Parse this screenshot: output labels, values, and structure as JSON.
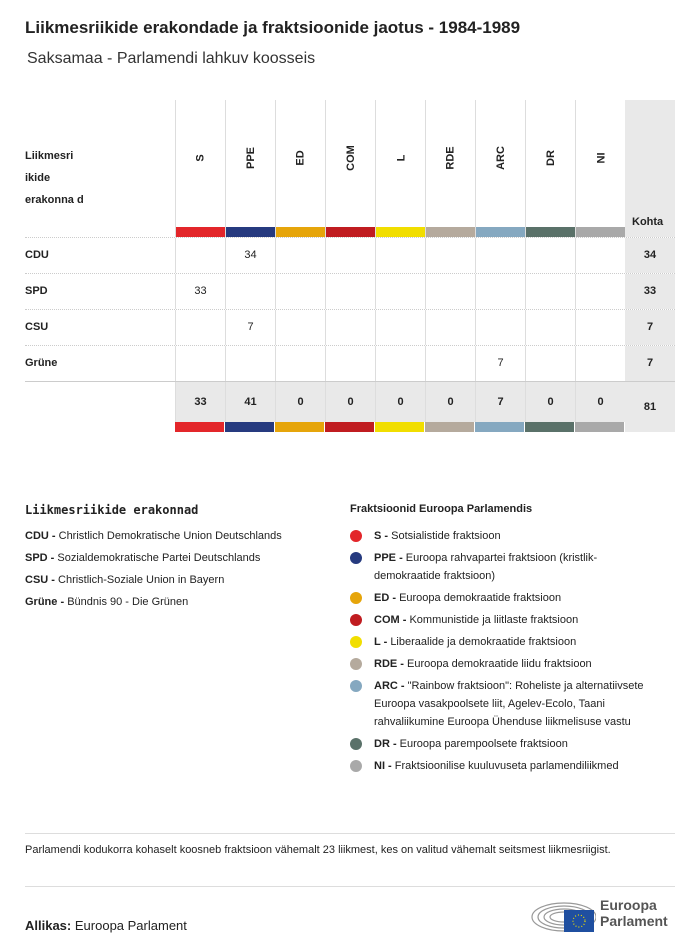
{
  "title": "Liikmesriikide erakondade ja fraktsioonide jaotus - 1984-1989",
  "subtitle": "Saksamaa - Parlamendi lahkuv koosseis",
  "table": {
    "row_header": "Liikmesri ikide erakonna d",
    "total_header": "Kohta",
    "groups": [
      {
        "code": "S",
        "color": "#e3262a"
      },
      {
        "code": "PPE",
        "color": "#263a7f"
      },
      {
        "code": "ED",
        "color": "#e6a50a"
      },
      {
        "code": "COM",
        "color": "#c01c20"
      },
      {
        "code": "L",
        "color": "#f1de00"
      },
      {
        "code": "RDE",
        "color": "#b5aa9d"
      },
      {
        "code": "ARC",
        "color": "#85a8c0"
      },
      {
        "code": "DR",
        "color": "#5a7169"
      },
      {
        "code": "NI",
        "color": "#a9a9a9"
      }
    ],
    "rows": [
      {
        "party": "CDU",
        "values": [
          "",
          "34",
          "",
          "",
          "",
          "",
          "",
          "",
          ""
        ],
        "total": "34"
      },
      {
        "party": "SPD",
        "values": [
          "33",
          "",
          "",
          "",
          "",
          "",
          "",
          "",
          ""
        ],
        "total": "33"
      },
      {
        "party": "CSU",
        "values": [
          "",
          "7",
          "",
          "",
          "",
          "",
          "",
          "",
          ""
        ],
        "total": "7"
      },
      {
        "party": "Grüne",
        "values": [
          "",
          "",
          "",
          "",
          "",
          "",
          "7",
          "",
          ""
        ],
        "total": "7"
      }
    ],
    "totals": [
      "33",
      "41",
      "0",
      "0",
      "0",
      "0",
      "7",
      "0",
      "0"
    ],
    "grand_total": "81"
  },
  "legend_parties": {
    "title": "Liikmesriikide erakonnad",
    "items": [
      {
        "code": "CDU -",
        "name": "Christlich Demokratische Union Deutschlands"
      },
      {
        "code": "SPD -",
        "name": "Sozialdemokratische Partei Deutschlands"
      },
      {
        "code": "CSU -",
        "name": "Christlich-Soziale Union in Bayern"
      },
      {
        "code": "Grüne -",
        "name": "Bündnis 90 - Die Grünen"
      }
    ]
  },
  "legend_groups": {
    "title": "Fraktsioonid Euroopa Parlamendis",
    "items": [
      {
        "code": "S -",
        "name": "Sotsialistide fraktsioon",
        "color": "#e3262a"
      },
      {
        "code": "PPE -",
        "name": "Euroopa rahvapartei fraktsioon (kristlik-demokraatide fraktsioon)",
        "color": "#263a7f"
      },
      {
        "code": "ED -",
        "name": "Euroopa demokraatide fraktsioon",
        "color": "#e6a50a"
      },
      {
        "code": "COM -",
        "name": "Kommunistide ja liitlaste fraktsioon",
        "color": "#c01c20"
      },
      {
        "code": "L -",
        "name": "Liberaalide ja demokraatide fraktsioon",
        "color": "#f1de00"
      },
      {
        "code": "RDE -",
        "name": "Euroopa demokraatide liidu fraktsioon",
        "color": "#b5aa9d"
      },
      {
        "code": "ARC -",
        "name": "\"Rainbow fraktsioon\": Roheliste ja alternatiivsete Euroopa vasakpoolsete liit, Agelev-Ecolo, Taani rahvaliikumine Euroopa Ühenduse liikmelisuse vastu",
        "color": "#85a8c0"
      },
      {
        "code": "DR -",
        "name": "Euroopa parempoolsete fraktsioon",
        "color": "#5a7169"
      },
      {
        "code": "NI -",
        "name": "Fraktsioonilise kuuluvuseta parlamendiliikmed",
        "color": "#a9a9a9"
      }
    ]
  },
  "note": "Parlamendi kodukorra kohaselt koosneb fraktsioon vähemalt 23 liikmest, kes on valitud vähemalt seitsmest liikmesriigist.",
  "source": {
    "label": "Allikas:",
    "value": "Euroopa Parlament"
  },
  "logo": {
    "line1": "Euroopa",
    "line2": "Parlament"
  }
}
